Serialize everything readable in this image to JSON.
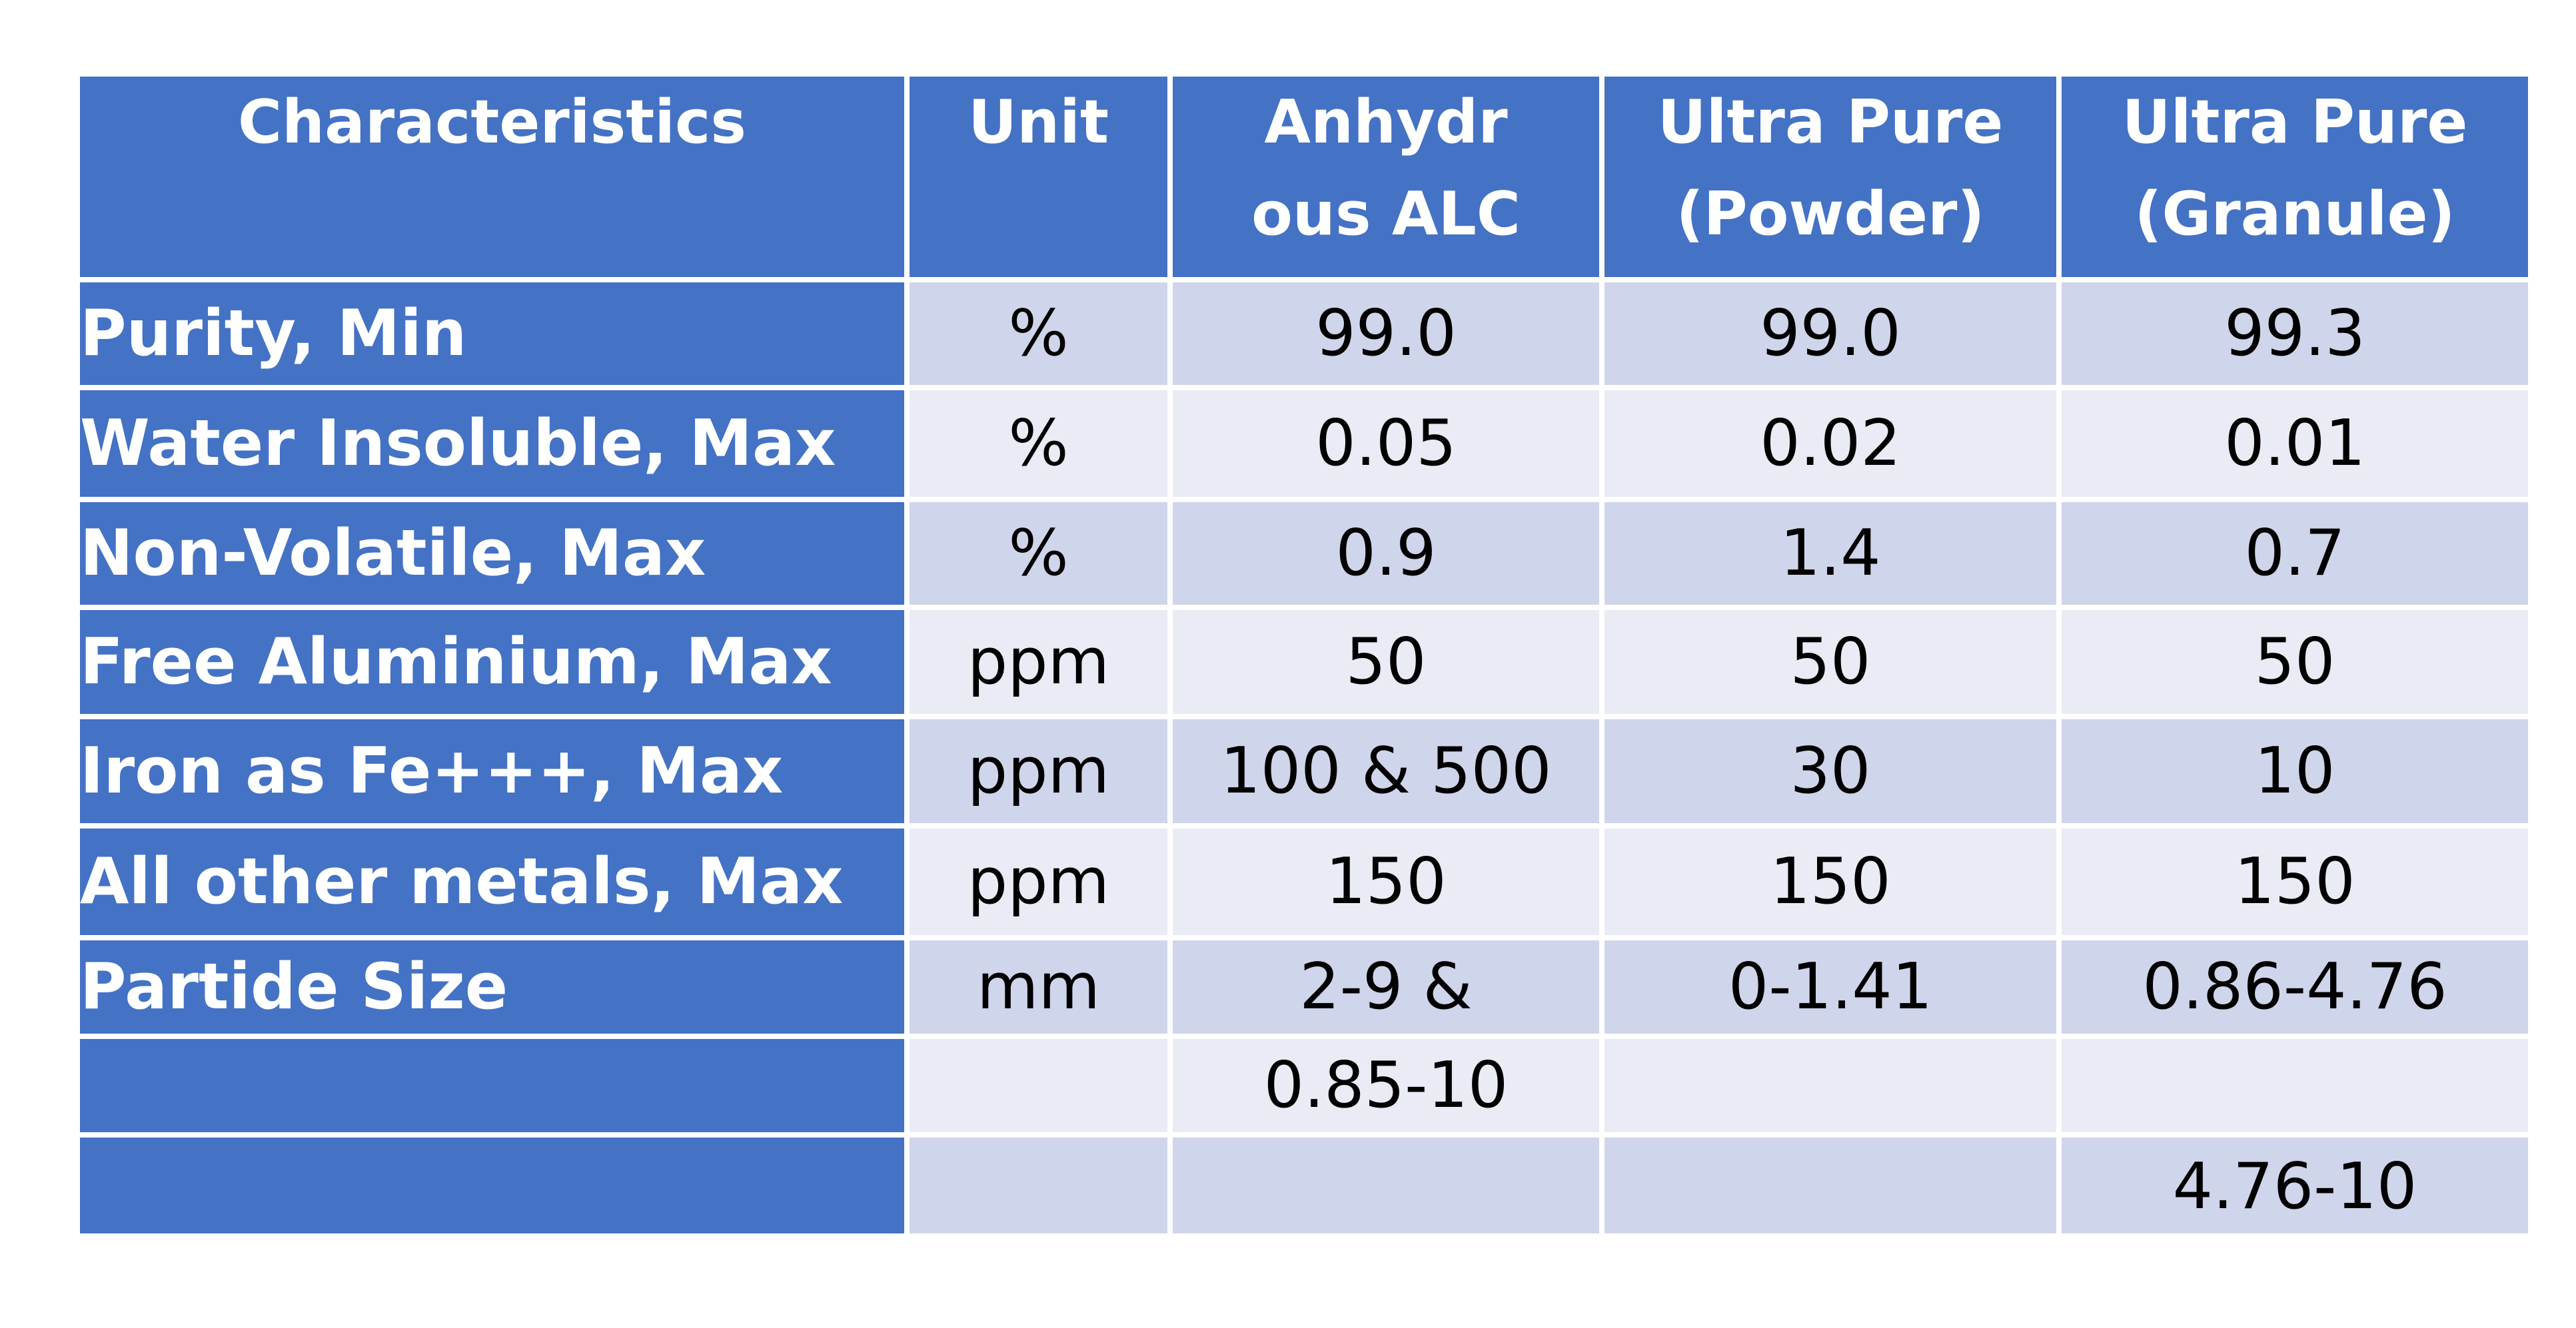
{
  "table": {
    "headers": [
      {
        "lines": [
          "Characteristics"
        ]
      },
      {
        "lines": [
          "Unit"
        ]
      },
      {
        "lines": [
          "Anhydr",
          "ous ALC"
        ]
      },
      {
        "lines": [
          "Ultra Pure",
          "(Powder)"
        ]
      },
      {
        "lines": [
          "Ultra Pure",
          "(Granule)"
        ]
      }
    ],
    "rows": [
      [
        "Purity, Min",
        "%",
        "99.0",
        "99.0",
        "99.3"
      ],
      [
        "Water Insoluble, Max",
        "%",
        "0.05",
        "0.02",
        "0.01"
      ],
      [
        "Non-Volatile, Max",
        "%",
        "0.9",
        "1.4",
        "0.7"
      ],
      [
        "Free Aluminium, Max",
        "ppm",
        "50",
        "50",
        "50"
      ],
      [
        "Iron as Fe+++, Max",
        "ppm",
        "100 & 500",
        "30",
        "10"
      ],
      [
        "All other metals, Max",
        "ppm",
        "150",
        "150",
        "150"
      ],
      [
        "Partide Size",
        "mm",
        "2-9 &",
        "0-1.41",
        "0.86-4.76"
      ],
      [
        "",
        "",
        "0.85-10",
        "",
        ""
      ],
      [
        "",
        "",
        "",
        "",
        "4.76-10"
      ]
    ]
  },
  "colors": {
    "header_bg": "#4472c4",
    "band_dark": "#cfd5ea",
    "band_light": "#e9ebf5",
    "header_text": "#ffffff"
  }
}
